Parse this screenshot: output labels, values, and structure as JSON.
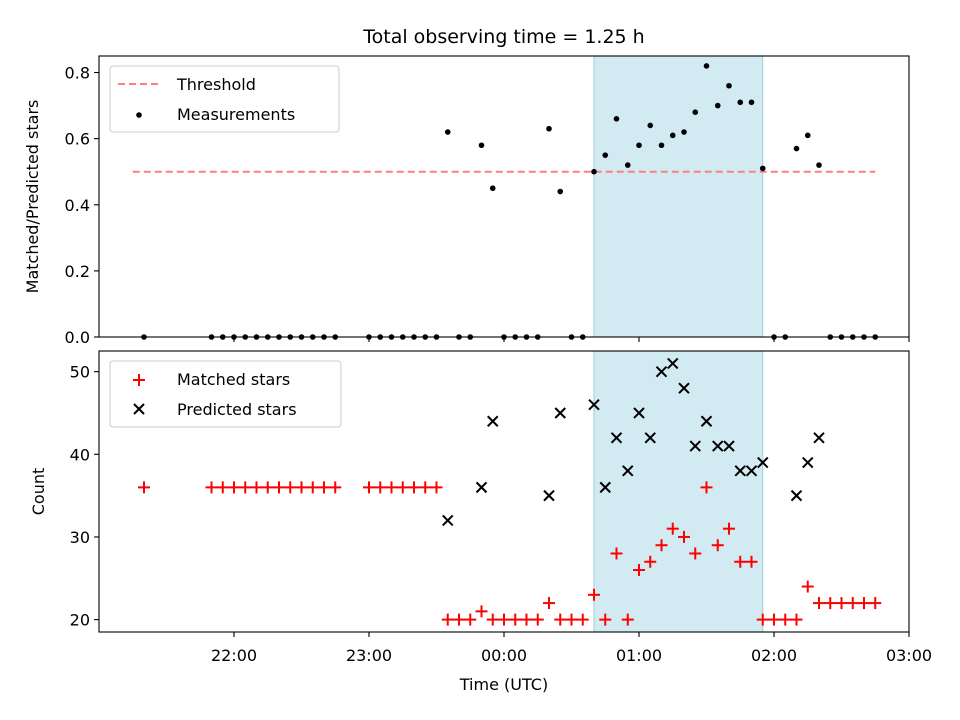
{
  "chart_data": [
    {
      "type": "scatter",
      "title": "Total observing time = 1.25 h",
      "ylabel": "Matched/Predicted stars",
      "ylim": [
        0,
        0.85
      ],
      "yticks": [
        0.0,
        0.2,
        0.4,
        0.6,
        0.8
      ],
      "ytick_labels": [
        "0.0",
        "0.2",
        "0.4",
        "0.6",
        "0.8"
      ],
      "xlim_hours": [
        21.0,
        27.0
      ],
      "highlight_span": {
        "start": "00:40",
        "end": "01:55",
        "color": "#add8e6"
      },
      "threshold": {
        "name": "Threshold",
        "value": 0.5,
        "x_start": "21:15",
        "x_end": "02:45",
        "color": "#ff7f7f",
        "style": "dashed"
      },
      "legend_position": "upper-left",
      "series": [
        {
          "name": "Measurements",
          "color": "#000000",
          "marker": "dot",
          "x": [
            "21:20",
            "21:50",
            "21:55",
            "22:00",
            "22:05",
            "22:10",
            "22:15",
            "22:20",
            "22:25",
            "22:30",
            "22:35",
            "22:40",
            "22:45",
            "23:00",
            "23:05",
            "23:10",
            "23:15",
            "23:20",
            "23:25",
            "23:30",
            "23:35",
            "23:40",
            "23:45",
            "23:50",
            "23:55",
            "00:00",
            "00:05",
            "00:10",
            "00:15",
            "00:20",
            "00:25",
            "00:30",
            "00:35",
            "00:40",
            "00:45",
            "00:50",
            "00:55",
            "01:00",
            "01:05",
            "01:10",
            "01:15",
            "01:20",
            "01:25",
            "01:30",
            "01:35",
            "01:40",
            "01:45",
            "01:50",
            "01:55",
            "02:00",
            "02:05",
            "02:10",
            "02:15",
            "02:20",
            "02:25",
            "02:30",
            "02:35",
            "02:40",
            "02:45"
          ],
          "y": [
            0.0,
            0.0,
            0.0,
            0.0,
            0.0,
            0.0,
            0.0,
            0.0,
            0.0,
            0.0,
            0.0,
            0.0,
            0.0,
            0.0,
            0.0,
            0.0,
            0.0,
            0.0,
            0.0,
            0.0,
            0.62,
            0.0,
            0.0,
            0.58,
            0.45,
            0.0,
            0.0,
            0.0,
            0.0,
            0.63,
            0.44,
            0.0,
            0.0,
            0.5,
            0.55,
            0.66,
            0.52,
            0.58,
            0.64,
            0.58,
            0.61,
            0.62,
            0.68,
            0.82,
            0.7,
            0.76,
            0.71,
            0.71,
            0.51,
            0.0,
            0.0,
            0.57,
            0.61,
            0.52,
            0.0,
            0.0,
            0.0,
            0.0,
            0.0
          ]
        }
      ]
    },
    {
      "type": "scatter",
      "xlabel": "Time (UTC)",
      "ylabel": "Count",
      "ylim": [
        18.5,
        52.5
      ],
      "yticks": [
        20,
        30,
        40,
        50
      ],
      "ytick_labels": [
        "20",
        "30",
        "40",
        "50"
      ],
      "xlim_hours": [
        21.0,
        27.0
      ],
      "xticks": [
        "22:00",
        "23:00",
        "00:00",
        "01:00",
        "02:00",
        "03:00"
      ],
      "highlight_span": {
        "start": "00:40",
        "end": "01:55",
        "color": "#add8e6"
      },
      "legend_position": "upper-left",
      "series": [
        {
          "name": "Matched stars",
          "color": "#ff0000",
          "marker": "plus",
          "x": [
            "21:20",
            "21:50",
            "21:55",
            "22:00",
            "22:05",
            "22:10",
            "22:15",
            "22:20",
            "22:25",
            "22:30",
            "22:35",
            "22:40",
            "22:45",
            "23:00",
            "23:05",
            "23:10",
            "23:15",
            "23:20",
            "23:25",
            "23:30",
            "23:35",
            "23:40",
            "23:45",
            "23:50",
            "23:55",
            "00:00",
            "00:05",
            "00:10",
            "00:15",
            "00:20",
            "00:25",
            "00:30",
            "00:35",
            "00:40",
            "00:45",
            "00:50",
            "00:55",
            "01:00",
            "01:05",
            "01:10",
            "01:15",
            "01:20",
            "01:25",
            "01:30",
            "01:35",
            "01:40",
            "01:45",
            "01:50",
            "01:55",
            "02:00",
            "02:05",
            "02:10",
            "02:15",
            "02:20",
            "02:25",
            "02:30",
            "02:35",
            "02:40",
            "02:45"
          ],
          "y": [
            36,
            36,
            36,
            36,
            36,
            36,
            36,
            36,
            36,
            36,
            36,
            36,
            36,
            36,
            36,
            36,
            36,
            36,
            36,
            36,
            20,
            20,
            20,
            21,
            20,
            20,
            20,
            20,
            20,
            22,
            20,
            20,
            20,
            23,
            20,
            28,
            20,
            26,
            27,
            29,
            31,
            30,
            28,
            36,
            29,
            31,
            27,
            27,
            20,
            20,
            20,
            20,
            24,
            22,
            22,
            22,
            22,
            22,
            22
          ]
        },
        {
          "name": "Predicted stars",
          "color": "#000000",
          "marker": "x",
          "x": [
            "23:35",
            "23:50",
            "23:55",
            "00:20",
            "00:25",
            "00:40",
            "00:45",
            "00:50",
            "00:55",
            "01:00",
            "01:05",
            "01:10",
            "01:15",
            "01:20",
            "01:25",
            "01:30",
            "01:35",
            "01:40",
            "01:45",
            "01:50",
            "01:55",
            "02:10",
            "02:15",
            "02:20"
          ],
          "y": [
            32,
            36,
            44,
            35,
            45,
            46,
            36,
            42,
            38,
            45,
            42,
            50,
            51,
            48,
            41,
            44,
            41,
            41,
            38,
            38,
            39,
            35,
            39,
            42
          ]
        }
      ]
    }
  ]
}
